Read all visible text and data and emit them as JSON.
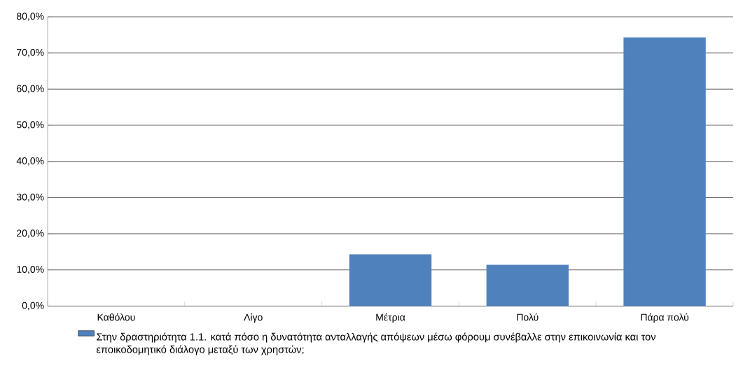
{
  "chart_data": {
    "type": "bar",
    "categories": [
      "Καθόλου",
      "Λίγο",
      "Μέτρια",
      "Πολύ",
      "Πάρα πολύ"
    ],
    "series": [
      {
        "name": "Στην δραστηριότητα 1.1. κατά πόσο η δυνατότητα ανταλλαγής απόψεων μέσω φόρουμ συνέβαλλε στην επικοινωνία και τον εποικοδομητικό διάλογο μεταξύ των χρηστών;",
        "color": "#4f81bd",
        "values": [
          0,
          0,
          14.3,
          11.4,
          74.3
        ]
      }
    ],
    "ylim": [
      0,
      80
    ],
    "yticks": [
      {
        "value": 0,
        "label": "0,0%"
      },
      {
        "value": 10,
        "label": "10,0%"
      },
      {
        "value": 20,
        "label": "20,0%"
      },
      {
        "value": 30,
        "label": "30,0%"
      },
      {
        "value": 40,
        "label": "40,0%"
      },
      {
        "value": 50,
        "label": "50,0%"
      },
      {
        "value": 60,
        "label": "60,0%"
      },
      {
        "value": 70,
        "label": "70,0%"
      },
      {
        "value": 80,
        "label": "80,0%"
      }
    ],
    "grid": "y",
    "legend": "bottom"
  }
}
